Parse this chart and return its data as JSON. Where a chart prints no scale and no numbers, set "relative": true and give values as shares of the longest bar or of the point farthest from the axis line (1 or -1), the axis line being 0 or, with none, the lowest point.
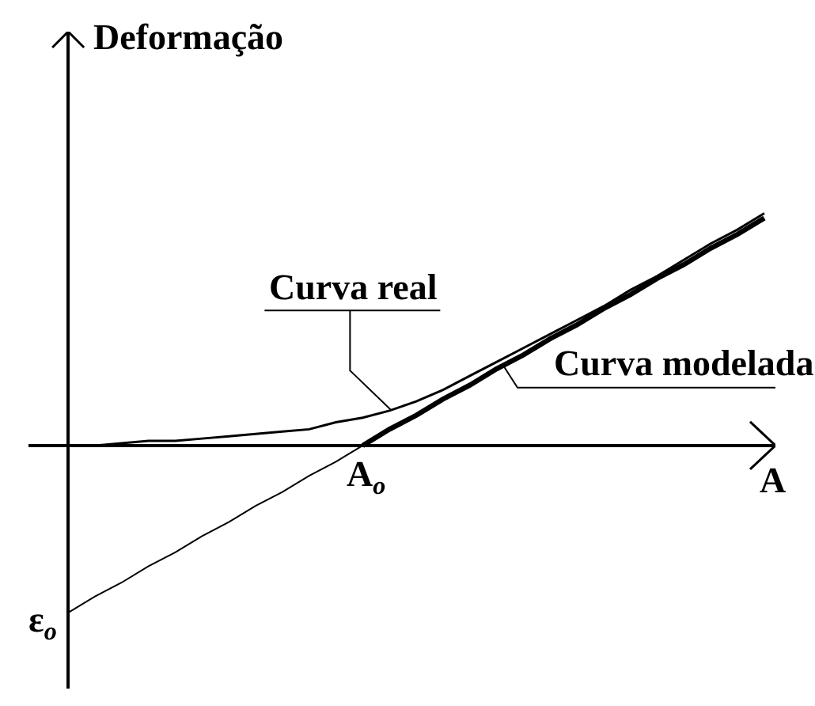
{
  "chart_data": {
    "type": "line",
    "relative": true,
    "xlabel": "A",
    "ylabel": "Deformação",
    "categories": [
      null,
      null,
      null,
      null,
      null,
      null,
      null,
      null,
      null,
      null,
      null,
      null,
      null,
      null,
      null,
      null,
      null,
      null,
      null,
      null,
      null,
      null,
      null,
      null,
      null,
      null,
      null
    ],
    "series": [
      {
        "name": "Curva real",
        "color": "#000000",
        "values": [
          0,
          0,
          0.01,
          0.02,
          0.02,
          0.03,
          0.04,
          0.05,
          0.06,
          0.07,
          0.1,
          0.12,
          0.15,
          0.19,
          0.24,
          0.3,
          0.36,
          0.42,
          0.48,
          0.54,
          0.6,
          0.67,
          0.73,
          0.8,
          0.87,
          0.93,
          1.0
        ]
      },
      {
        "name": "Curva modelada",
        "color": "#000000",
        "values": [
          null,
          null,
          null,
          null,
          null,
          null,
          null,
          null,
          null,
          null,
          null,
          0,
          0.07,
          0.13,
          0.2,
          0.26,
          0.33,
          0.39,
          0.46,
          0.52,
          0.59,
          0.65,
          0.72,
          0.78,
          0.85,
          0.91,
          0.98
        ]
      },
      {
        "color": "#000000",
        "values": [
          -0.72,
          -0.65,
          -0.59,
          -0.52,
          -0.46,
          -0.39,
          -0.33,
          -0.26,
          -0.2,
          -0.13,
          -0.07,
          0,
          null,
          null,
          null,
          null,
          null,
          null,
          null,
          null,
          null,
          null,
          null,
          null,
          null,
          null,
          null
        ]
      }
    ],
    "annotations": [
      {
        "text": "A$_{o}$",
        "y": 0
      },
      "ε$_{o}$"
    ]
  }
}
